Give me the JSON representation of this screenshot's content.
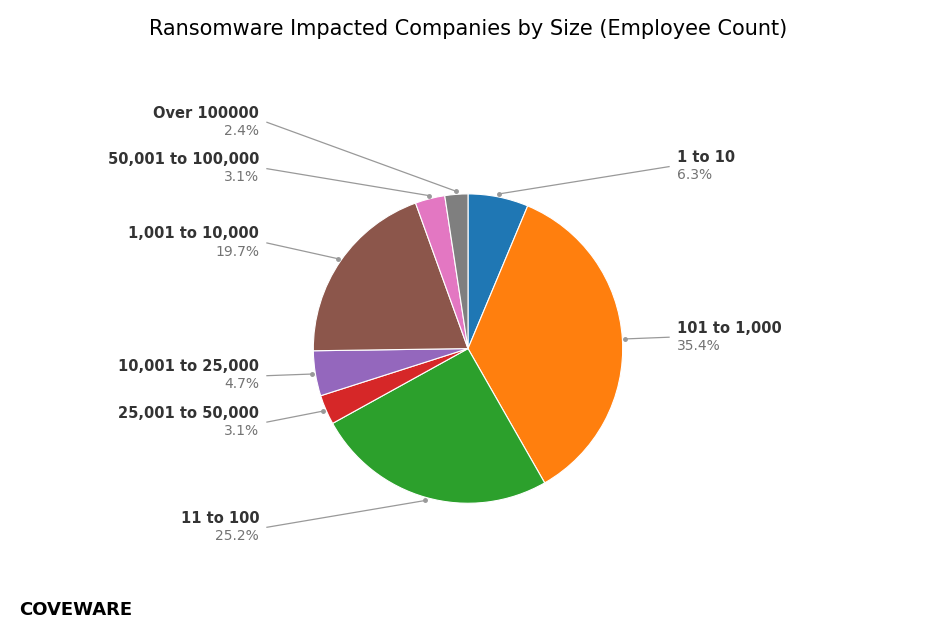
{
  "chart_data": {
    "type": "pie",
    "title": "Ransomware Impacted Companies by Size (Employee Count)",
    "categories": [
      "1 to 10",
      "101 to 1,000",
      "11 to 100",
      "25,001 to 50,000",
      "10,001 to 25,000",
      "1,001 to 10,000",
      "50,001 to 100,000",
      "Over 100000"
    ],
    "values": [
      6.3,
      35.4,
      25.2,
      3.1,
      4.7,
      19.7,
      3.1,
      2.4
    ],
    "value_labels": [
      "6.3%",
      "35.4%",
      "25.2%",
      "3.1%",
      "4.7%",
      "19.7%",
      "3.1%",
      "2.4%"
    ],
    "data_labels": true,
    "annotations": [
      "COVEWARE"
    ]
  }
}
